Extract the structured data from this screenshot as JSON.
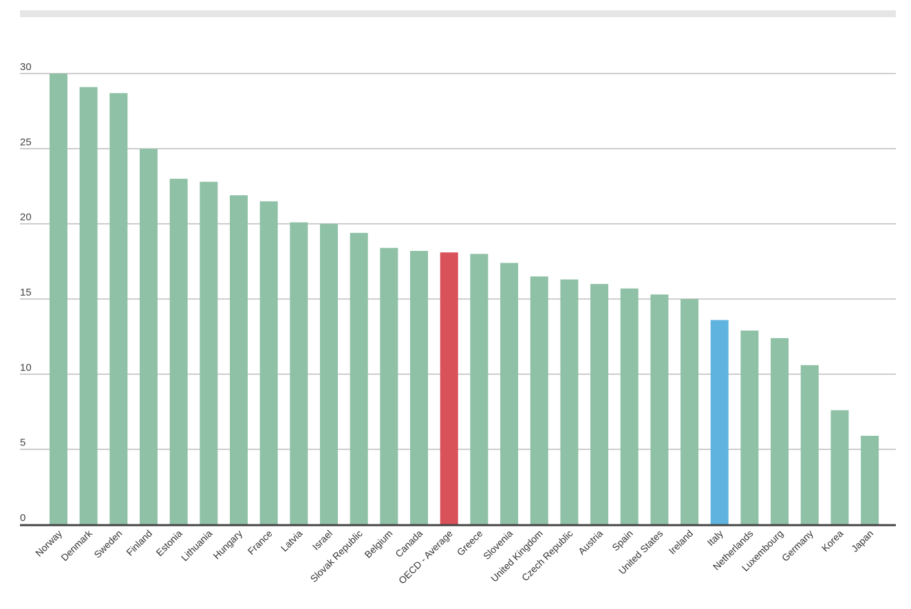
{
  "chart_data": {
    "type": "bar",
    "title": "",
    "xlabel": "",
    "ylabel": "",
    "ylim": [
      0,
      30
    ],
    "yticks": [
      0,
      5,
      10,
      15,
      20,
      25,
      30
    ],
    "grid": true,
    "categories": [
      "Norway",
      "Denmark",
      "Sweden",
      "Finland",
      "Estonia",
      "Lithuania",
      "Hungary",
      "France",
      "Latvia",
      "Israel",
      "Slovak Republic",
      "Belgium",
      "Canada",
      "OECD - Average",
      "Greece",
      "Slovenia",
      "United Kingdom",
      "Czech Republic",
      "Austria",
      "Spain",
      "United States",
      "Ireland",
      "Italy",
      "Netherlands",
      "Luxembourg",
      "Germany",
      "Korea",
      "Japan"
    ],
    "values": [
      30,
      29.1,
      28.7,
      25,
      23,
      22.8,
      21.9,
      21.5,
      20.1,
      20,
      19.4,
      18.4,
      18.2,
      18.1,
      18,
      17.4,
      16.5,
      16.3,
      16,
      15.7,
      15.3,
      15,
      13.6,
      12.9,
      12.4,
      10.6,
      7.6,
      5.9
    ],
    "colors": {
      "default": "#8fc1a6",
      "highlight_average": "#d95259",
      "highlight_italy": "#5fb3df",
      "gridline": "#bdbdbd",
      "baseline": "#444444"
    },
    "highlights": {
      "OECD - Average": "highlight_average",
      "Italy": "highlight_italy"
    }
  }
}
